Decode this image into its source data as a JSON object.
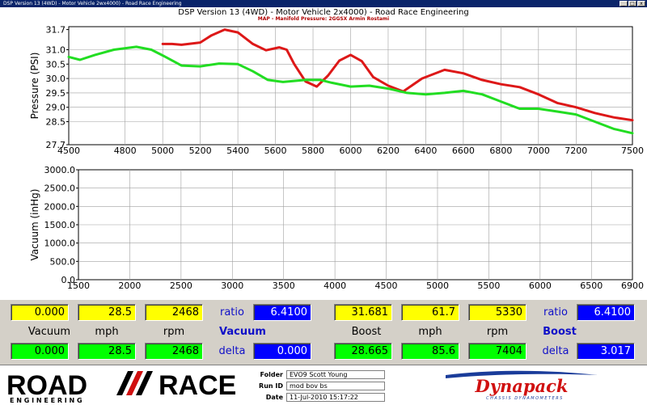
{
  "window": {
    "title": "DSP Version 13 (4WD) - Motor Vehicle 2wx4000) - Road Race Engineering",
    "controls": [
      "_",
      "□",
      "x"
    ]
  },
  "chart_header": {
    "title": "DSP Version 13 (4WD) - Motor Vehicle 2x4000) - Road Race Engineering",
    "subtitle": "MAP - Manifold Pressure: 2GGSX Armin Rostami"
  },
  "colors": {
    "red_series": "#dd1818",
    "green_series": "#22dd22",
    "grid": "#a0a0a0",
    "panel_bg": "#d4d0c8",
    "title_bar": "#0a246a"
  },
  "chart_data": [
    {
      "type": "line",
      "ylabel": "Pressure (PSI)",
      "xlabel": "",
      "xlim": [
        4500,
        7500
      ],
      "ylim": [
        27.7,
        31.8
      ],
      "x_ticks": [
        4500,
        4800,
        5000,
        5200,
        5400,
        5600,
        5800,
        6000,
        6200,
        6400,
        6600,
        6800,
        7000,
        7200,
        7500
      ],
      "y_ticks": [
        "31.7",
        "31.0",
        "30.5",
        "30.0",
        "29.5",
        "29.0",
        "28.5",
        "27.7"
      ],
      "y_tick_values": [
        31.7,
        31.0,
        30.5,
        30.0,
        29.5,
        29.0,
        28.5,
        27.7
      ],
      "grid": true,
      "series": [
        {
          "color": "#dd1818",
          "x": [
            5000,
            5050,
            5100,
            5200,
            5260,
            5330,
            5400,
            5480,
            5550,
            5620,
            5660,
            5700,
            5760,
            5820,
            5880,
            5940,
            6000,
            6060,
            6120,
            6200,
            6280,
            6380,
            6500,
            6600,
            6700,
            6800,
            6900,
            7000,
            7100,
            7200,
            7300,
            7400,
            7500
          ],
          "y": [
            31.2,
            31.2,
            31.17,
            31.25,
            31.5,
            31.7,
            31.6,
            31.2,
            30.98,
            31.08,
            31.0,
            30.5,
            29.9,
            29.72,
            30.1,
            30.62,
            30.82,
            30.6,
            30.05,
            29.75,
            29.55,
            30.0,
            30.3,
            30.18,
            29.95,
            29.8,
            29.7,
            29.45,
            29.15,
            29.0,
            28.8,
            28.65,
            28.55
          ]
        },
        {
          "color": "#22dd22",
          "x": [
            4500,
            4560,
            4640,
            4740,
            4860,
            4940,
            5000,
            5100,
            5200,
            5300,
            5400,
            5480,
            5560,
            5640,
            5760,
            5840,
            5900,
            6000,
            6100,
            6200,
            6300,
            6400,
            6500,
            6600,
            6700,
            6800,
            6900,
            7000,
            7100,
            7200,
            7300,
            7400,
            7500
          ],
          "y": [
            30.75,
            30.65,
            30.82,
            31.0,
            31.1,
            31.0,
            30.8,
            30.45,
            30.42,
            30.52,
            30.5,
            30.25,
            29.95,
            29.88,
            29.95,
            29.95,
            29.85,
            29.72,
            29.75,
            29.65,
            29.5,
            29.45,
            29.5,
            29.57,
            29.45,
            29.2,
            28.95,
            28.95,
            28.85,
            28.75,
            28.5,
            28.25,
            28.1
          ]
        }
      ]
    },
    {
      "type": "line",
      "ylabel": "Vacuum (inHg)",
      "xlabel": "",
      "xlim": [
        1500,
        6900
      ],
      "ylim": [
        0,
        3000
      ],
      "x_ticks": [
        1500,
        2000,
        2500,
        3000,
        3500,
        4000,
        4500,
        5000,
        5500,
        6000,
        6500,
        6900
      ],
      "y_ticks": [
        "3000.0",
        "2500.0",
        "2000.0",
        "1500.0",
        "1000.0",
        "500.0",
        "0.0"
      ],
      "y_tick_values": [
        3000,
        2500,
        2000,
        1500,
        1000,
        500,
        0
      ],
      "grid": true,
      "series": []
    }
  ],
  "readouts": {
    "vacuum": {
      "top": {
        "vacuum": "0.000",
        "mph": "28.5",
        "rpm": "2468",
        "ratio_label": "ratio",
        "ratio": "6.4100"
      },
      "labels": {
        "vacuum": "Vacuum",
        "mph": "mph",
        "rpm": "rpm",
        "section": "Vacuum"
      },
      "bottom": {
        "vacuum": "0.000",
        "mph": "28.5",
        "rpm": "2468",
        "delta_label": "delta",
        "delta": "0.000"
      }
    },
    "boost": {
      "top": {
        "boost": "31.681",
        "mph": "61.7",
        "rpm": "5330",
        "ratio_label": "ratio",
        "ratio": "6.4100"
      },
      "labels": {
        "boost": "Boost",
        "mph": "mph",
        "rpm": "rpm",
        "section": "Boost"
      },
      "bottom": {
        "boost": "28.665",
        "mph": "85.6",
        "rpm": "7404",
        "delta_label": "delta",
        "delta": "3.017"
      }
    }
  },
  "footer": {
    "logo_left": {
      "word1": "ROAD",
      "word2": "RACE",
      "tagline": "E N G I N E E R I N G"
    },
    "info": [
      {
        "label": "Folder",
        "value": "EVO9 Scott Young"
      },
      {
        "label": "Run ID",
        "value": "mod bov bs"
      },
      {
        "label": "Date",
        "value": "11-Jul-2010 15:17:22"
      }
    ],
    "logo_right": {
      "brand": "Dynapack",
      "tagline": "CHASSIS DYNAMOMETERS"
    }
  }
}
